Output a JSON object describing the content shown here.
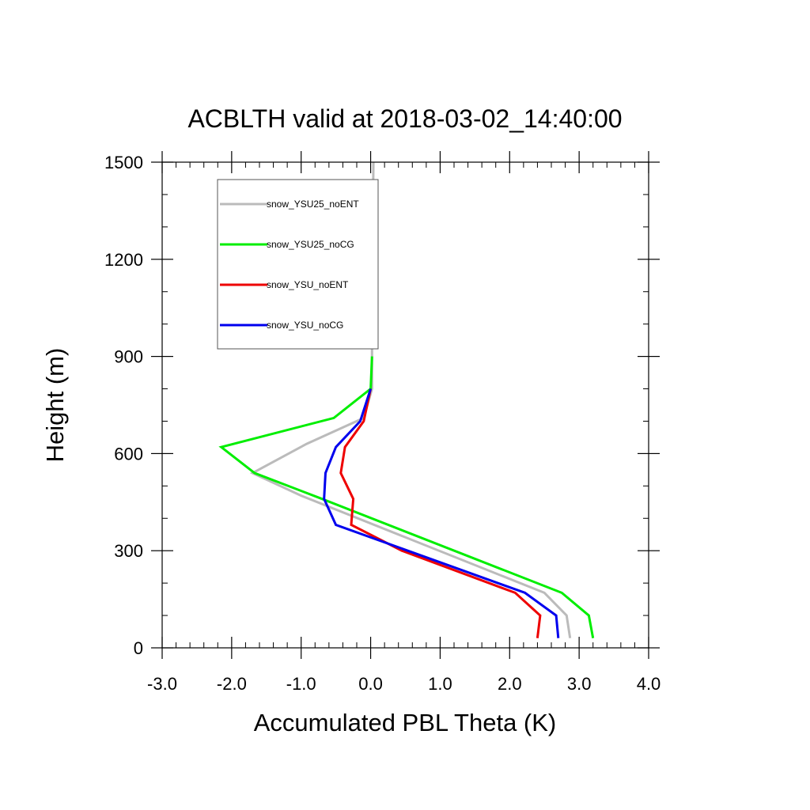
{
  "chart_data": {
    "type": "line",
    "title": "ACBLTH valid at 2018-03-02_14:40:00",
    "xlabel": "Accumulated PBL Theta (K)",
    "ylabel": "Height (m)",
    "xlim": [
      -3.0,
      4.0
    ],
    "ylim": [
      0,
      1500
    ],
    "xticks": [
      -3.0,
      -2.0,
      -1.0,
      0.0,
      1.0,
      2.0,
      3.0,
      4.0
    ],
    "xtick_labels": [
      "-3.0",
      "-2.0",
      "-1.0",
      "0.0",
      "1.0",
      "2.0",
      "3.0",
      "4.0"
    ],
    "yticks": [
      0,
      300,
      600,
      900,
      1200,
      1500
    ],
    "ytick_labels": [
      "0",
      "300",
      "600",
      "900",
      "1200",
      "1500"
    ],
    "grid": false,
    "legend_position": "top-left",
    "series": [
      {
        "name": "snow_YSU25_noENT",
        "color": "#bbbbbb",
        "points": [
          [
            2.87,
            30
          ],
          [
            2.82,
            100
          ],
          [
            2.5,
            170
          ],
          [
            -1.0,
            470
          ],
          [
            -1.7,
            540
          ],
          [
            -0.92,
            630
          ],
          [
            -0.1,
            710
          ],
          [
            0.02,
            800
          ],
          [
            0.02,
            900
          ],
          [
            0.02,
            1100
          ],
          [
            0.03,
            1300
          ],
          [
            0.04,
            1500
          ]
        ]
      },
      {
        "name": "snow_YSU25_noCG",
        "color": "#00ee00",
        "points": [
          [
            3.2,
            30
          ],
          [
            3.14,
            100
          ],
          [
            2.75,
            170
          ],
          [
            -0.7,
            460
          ],
          [
            -1.67,
            540
          ],
          [
            -2.15,
            620
          ],
          [
            -0.53,
            710
          ],
          [
            0.0,
            800
          ],
          [
            0.02,
            900
          ]
        ]
      },
      {
        "name": "snow_YSU_noENT",
        "color": "#ee0000",
        "points": [
          [
            2.4,
            30
          ],
          [
            2.44,
            100
          ],
          [
            2.08,
            170
          ],
          [
            0.45,
            300
          ],
          [
            -0.28,
            380
          ],
          [
            -0.25,
            460
          ],
          [
            -0.43,
            540
          ],
          [
            -0.37,
            620
          ],
          [
            -0.1,
            700
          ],
          [
            0.0,
            800
          ]
        ]
      },
      {
        "name": "snow_YSU_noCG",
        "color": "#0000ee",
        "points": [
          [
            2.7,
            30
          ],
          [
            2.67,
            100
          ],
          [
            2.22,
            170
          ],
          [
            -0.5,
            380
          ],
          [
            -0.67,
            460
          ],
          [
            -0.65,
            540
          ],
          [
            -0.5,
            620
          ],
          [
            -0.15,
            700
          ],
          [
            0.0,
            800
          ]
        ]
      }
    ]
  }
}
